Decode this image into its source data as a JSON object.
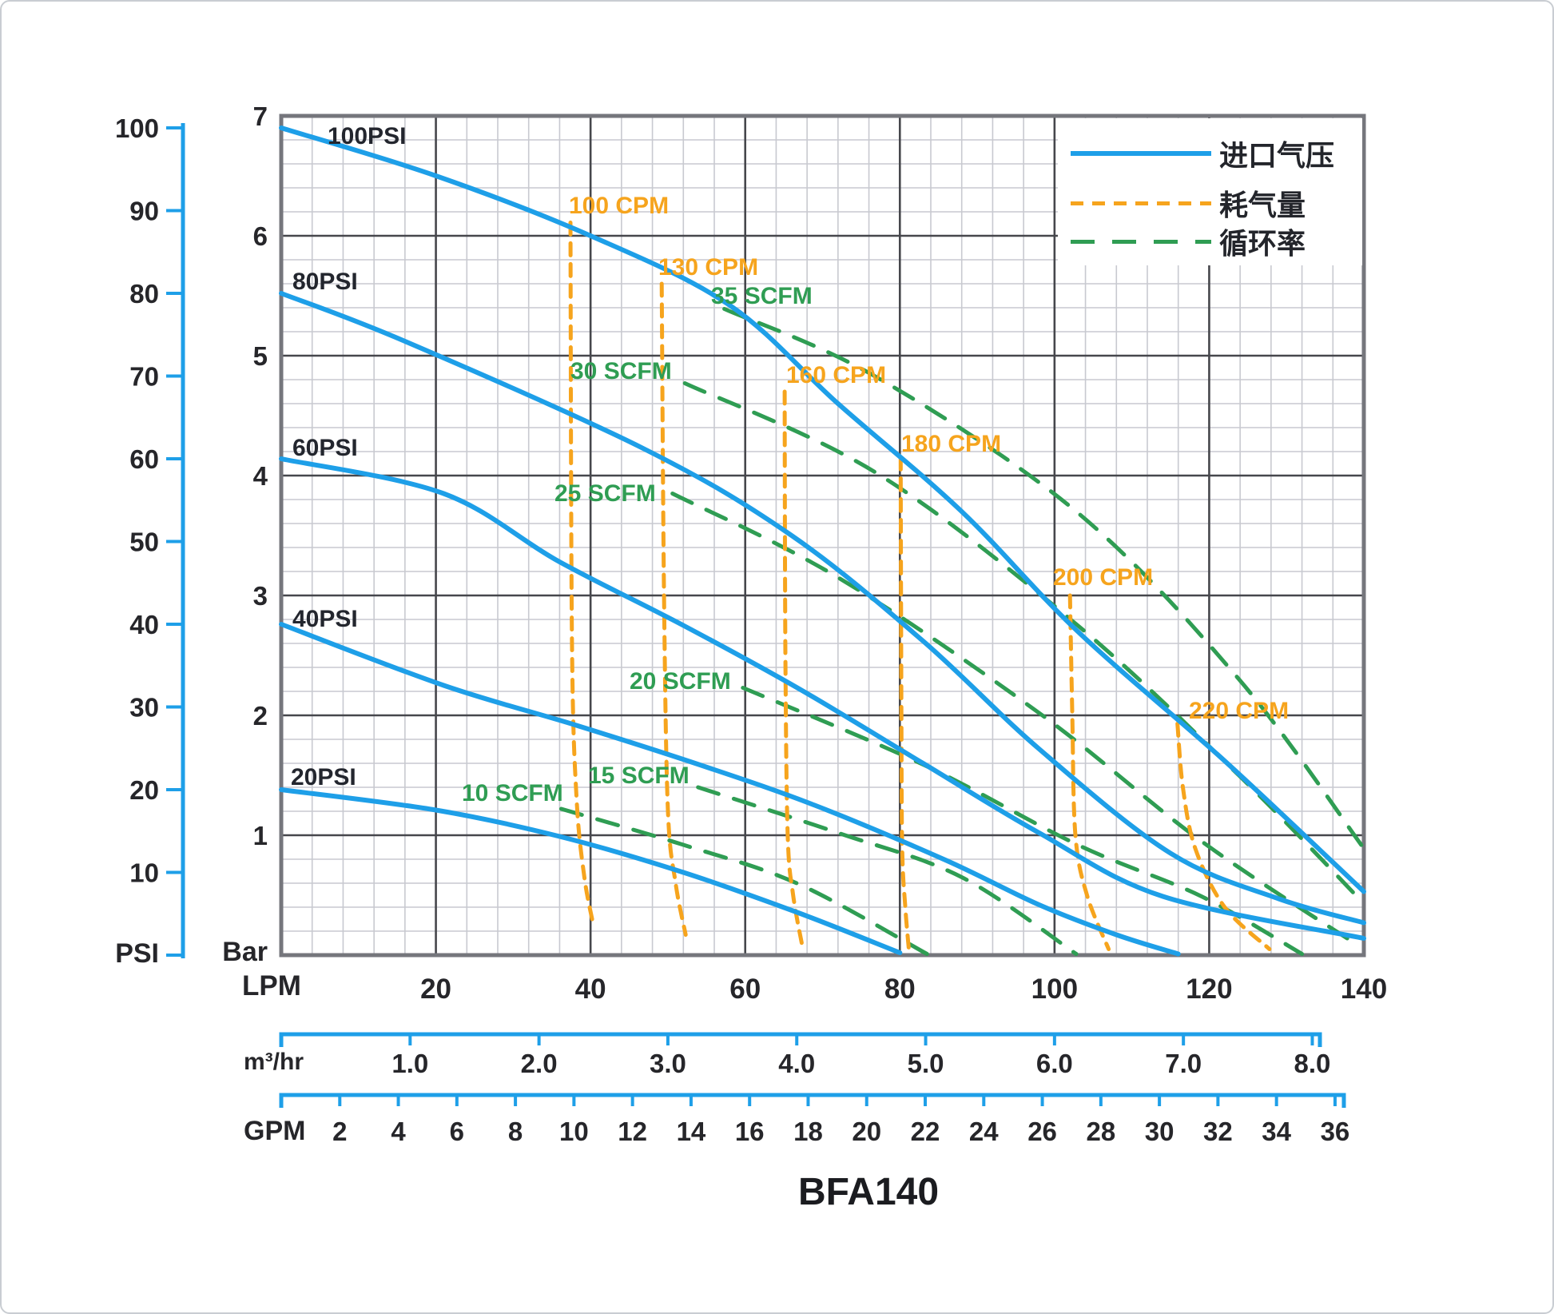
{
  "title": "BFA140",
  "legend": {
    "items": [
      {
        "label": "进口气压",
        "type": "solid",
        "color": "#1E9FE8"
      },
      {
        "label": "耗气量",
        "type": "dash",
        "color": "#F6A41D"
      },
      {
        "label": "循环率",
        "type": "longdash",
        "color": "#2F9D53"
      }
    ]
  },
  "axes": {
    "psi": {
      "unit": "PSI",
      "ticks": [
        100,
        90,
        80,
        70,
        60,
        50,
        40,
        30,
        20,
        10
      ]
    },
    "bar": {
      "unit": "Bar",
      "ticks": [
        7,
        6,
        5,
        4,
        3,
        2,
        1
      ]
    },
    "lpm": {
      "unit": "LPM",
      "ticks": [
        20,
        40,
        60,
        80,
        100,
        120,
        140
      ]
    },
    "m3hr": {
      "unit": "m³/hr",
      "ticks": [
        "1.0",
        "2.0",
        "3.0",
        "4.0",
        "5.0",
        "6.0",
        "7.0",
        "8.0"
      ]
    },
    "gpm": {
      "unit": "GPM",
      "ticks": [
        2,
        4,
        6,
        8,
        10,
        12,
        14,
        16,
        18,
        20,
        22,
        24,
        26,
        28,
        30,
        32,
        34,
        36
      ]
    }
  },
  "chart_data": {
    "type": "line",
    "title": "BFA140",
    "x_unit": "LPM",
    "x_range_lpm": [
      0,
      140
    ],
    "y_unit_inner": "Bar",
    "y_range_bar": [
      0,
      7
    ],
    "y_unit_outer": "PSI",
    "y_range_psi": [
      0,
      100
    ],
    "grid": "on",
    "legend_position": "top-right",
    "colors": {
      "pressure": "#1E9FE8",
      "consumption": "#F6A41D",
      "cycle": "#2F9D53"
    },
    "series": [
      {
        "group": "pressure",
        "name": "100PSI",
        "points": [
          [
            0,
            6.9
          ],
          [
            20,
            6.5
          ],
          [
            40,
            6.0
          ],
          [
            58,
            5.42
          ],
          [
            72,
            4.6
          ],
          [
            88,
            3.7
          ],
          [
            103,
            2.7
          ],
          [
            122,
            1.62
          ],
          [
            140,
            0.53
          ]
        ]
      },
      {
        "group": "pressure",
        "name": "80PSI",
        "points": [
          [
            0,
            5.52
          ],
          [
            16,
            5.12
          ],
          [
            47,
            4.22
          ],
          [
            66,
            3.5
          ],
          [
            83,
            2.62
          ],
          [
            98,
            1.72
          ],
          [
            115,
            0.85
          ],
          [
            129,
            0.47
          ],
          [
            140,
            0.27
          ]
        ]
      },
      {
        "group": "pressure",
        "name": "60PSI",
        "points": [
          [
            0,
            4.14
          ],
          [
            21,
            3.85
          ],
          [
            36,
            3.28
          ],
          [
            52,
            2.75
          ],
          [
            67,
            2.22
          ],
          [
            83,
            1.6
          ],
          [
            98,
            1.02
          ],
          [
            114,
            0.49
          ],
          [
            140,
            0.14
          ]
        ]
      },
      {
        "group": "pressure",
        "name": "40PSI",
        "points": [
          [
            0,
            2.76
          ],
          [
            21,
            2.25
          ],
          [
            38,
            1.92
          ],
          [
            54,
            1.59
          ],
          [
            69,
            1.25
          ],
          [
            86,
            0.79
          ],
          [
            98,
            0.42
          ],
          [
            108,
            0.17
          ],
          [
            116,
            0.01
          ]
        ]
      },
      {
        "group": "pressure",
        "name": "20PSI",
        "points": [
          [
            0,
            1.38
          ],
          [
            20,
            1.21
          ],
          [
            36,
            0.99
          ],
          [
            52,
            0.69
          ],
          [
            67,
            0.35
          ],
          [
            80,
            0.02
          ]
        ]
      },
      {
        "group": "consumption",
        "name": "100 CPM",
        "points": [
          [
            37.4,
            6.11
          ],
          [
            37.6,
            2.6
          ],
          [
            38.2,
            1.3
          ],
          [
            39.2,
            0.65
          ],
          [
            40.3,
            0.27
          ]
        ]
      },
      {
        "group": "consumption",
        "name": "130 CPM",
        "points": [
          [
            49.2,
            5.6
          ],
          [
            49.5,
            3.0
          ],
          [
            50.0,
            1.22
          ],
          [
            51.0,
            0.6
          ],
          [
            52.3,
            0.17
          ]
        ]
      },
      {
        "group": "consumption",
        "name": "160 CPM",
        "points": [
          [
            65.1,
            4.7
          ],
          [
            65.2,
            2.5
          ],
          [
            65.5,
            1.0
          ],
          [
            66.2,
            0.5
          ],
          [
            67.4,
            0.07
          ]
        ]
      },
      {
        "group": "consumption",
        "name": "180 CPM",
        "points": [
          [
            80.1,
            4.15
          ],
          [
            80.2,
            2.0
          ],
          [
            80.3,
            0.89
          ],
          [
            80.7,
            0.4
          ],
          [
            81.2,
            0.02
          ]
        ]
      },
      {
        "group": "consumption",
        "name": "200 CPM",
        "points": [
          [
            102.0,
            3.0
          ],
          [
            102.3,
            2.0
          ],
          [
            102.7,
            1.0
          ],
          [
            104.2,
            0.5
          ],
          [
            107.0,
            0.05
          ]
        ]
      },
      {
        "group": "consumption",
        "name": "220 CPM",
        "points": [
          [
            115.9,
            1.93
          ],
          [
            116.6,
            1.4
          ],
          [
            118.2,
            0.89
          ],
          [
            122.0,
            0.4
          ],
          [
            127.8,
            0.05
          ]
        ]
      },
      {
        "group": "cycle",
        "name": "35 SCFM",
        "points": [
          [
            57.3,
            5.39
          ],
          [
            77,
            4.82
          ],
          [
            103,
            3.69
          ],
          [
            124,
            2.29
          ],
          [
            140,
            0.89
          ]
        ]
      },
      {
        "group": "cycle",
        "name": "30 SCFM",
        "points": [
          [
            52.2,
            4.77
          ],
          [
            77,
            4.02
          ],
          [
            103,
            2.75
          ],
          [
            124,
            1.49
          ],
          [
            140,
            0.43
          ]
        ]
      },
      {
        "group": "cycle",
        "name": "25 SCFM",
        "points": [
          [
            50.6,
            3.85
          ],
          [
            72,
            3.15
          ],
          [
            98,
            2.02
          ],
          [
            119,
            0.95
          ],
          [
            139.5,
            0.07
          ]
        ]
      },
      {
        "group": "cycle",
        "name": "20 SCFM",
        "points": [
          [
            59.7,
            2.23
          ],
          [
            83,
            1.59
          ],
          [
            103,
            0.92
          ],
          [
            119,
            0.49
          ],
          [
            132,
            0.01
          ]
        ]
      },
      {
        "group": "cycle",
        "name": "15 SCFM",
        "points": [
          [
            53.9,
            1.4
          ],
          [
            72,
            1.02
          ],
          [
            88,
            0.65
          ],
          [
            102.8,
            0.01
          ]
        ]
      },
      {
        "group": "cycle",
        "name": "10 SCFM",
        "points": [
          [
            36.2,
            1.22
          ],
          [
            52,
            0.92
          ],
          [
            67,
            0.59
          ],
          [
            83.5,
            0.01
          ]
        ]
      }
    ]
  }
}
